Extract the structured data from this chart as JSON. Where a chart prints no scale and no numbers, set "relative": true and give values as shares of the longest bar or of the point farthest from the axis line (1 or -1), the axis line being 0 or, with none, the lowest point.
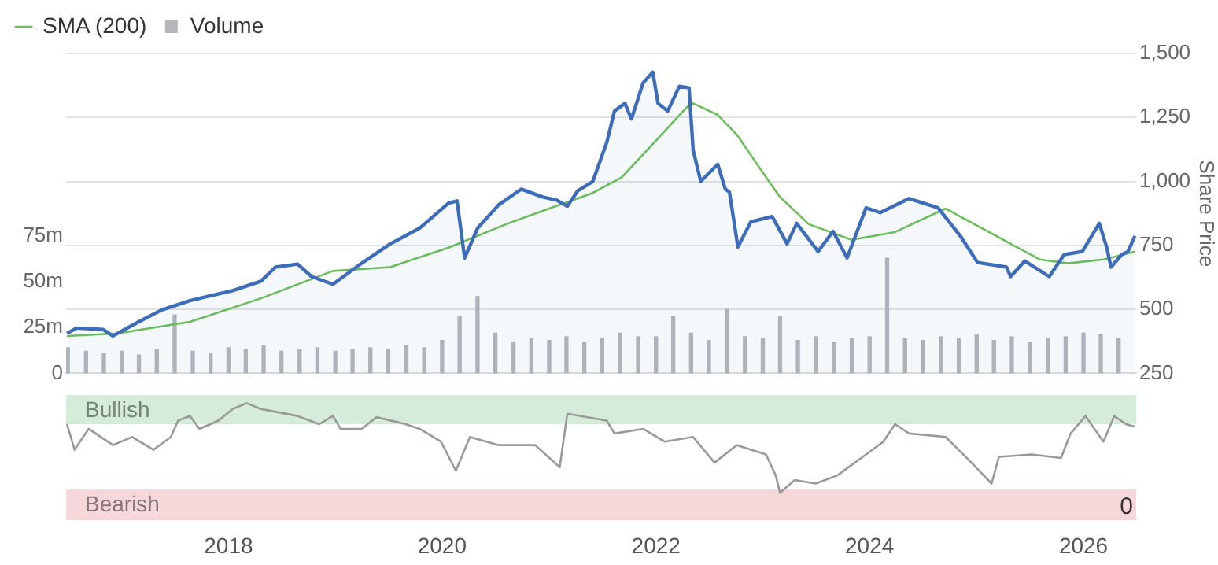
{
  "chart_data": [
    {
      "type": "line",
      "xlim": [
        "2016-06-25",
        "2026-06-30"
      ],
      "ylim": [
        250,
        1500
      ],
      "yticks": [
        {
          "value": 250,
          "label": "250"
        },
        {
          "value": 500,
          "label": "500"
        },
        {
          "value": 750,
          "label": "750"
        },
        {
          "value": 1000,
          "label": "1,000"
        },
        {
          "value": 1250,
          "label": "1,250"
        },
        {
          "value": 1500,
          "label": "1,500"
        }
      ],
      "y2lim": [
        0,
        175
      ],
      "y2ticks": [
        {
          "value": 0,
          "label": "0"
        },
        {
          "value": 25,
          "label": "25m"
        },
        {
          "value": 50,
          "label": "50m"
        },
        {
          "value": 75,
          "label": "75m"
        }
      ],
      "ylabel": "Share Price",
      "grid": "y",
      "legend": "top left",
      "tick_labels": "y",
      "series": [
        {
          "type": "bar",
          "name": "Volume",
          "axis": "y2",
          "color": "#b4b6bc",
          "x": [
            "2016-07-01",
            "2016-09-01",
            "2016-11-01",
            "2017-01-01",
            "2017-03-01",
            "2017-05-01",
            "2017-07-01",
            "2017-09-01",
            "2017-11-01",
            "2018-01-01",
            "2018-03-01",
            "2018-05-01",
            "2018-07-01",
            "2018-09-01",
            "2018-11-01",
            "2019-01-01",
            "2019-03-01",
            "2019-05-01",
            "2019-07-01",
            "2019-09-01",
            "2019-11-01",
            "2020-01-01",
            "2020-03-01",
            "2020-05-01",
            "2020-07-01",
            "2020-09-01",
            "2020-11-01",
            "2021-01-01",
            "2021-03-01",
            "2021-05-01",
            "2021-07-01",
            "2021-09-01",
            "2021-11-01",
            "2022-01-01",
            "2022-03-01",
            "2022-05-01",
            "2022-07-01",
            "2022-09-01",
            "2022-11-01",
            "2023-01-01",
            "2023-03-01",
            "2023-05-01",
            "2023-07-01",
            "2023-09-01",
            "2023-11-01",
            "2024-01-01",
            "2024-03-01",
            "2024-05-01",
            "2024-07-01",
            "2024-09-01",
            "2024-11-01",
            "2025-01-01",
            "2025-03-01",
            "2025-05-01",
            "2025-07-01",
            "2025-09-01",
            "2025-11-01",
            "2026-01-01",
            "2026-03-01",
            "2026-05-01"
          ],
          "values": [
            14,
            12,
            11,
            12,
            10,
            13,
            32,
            12,
            11,
            14,
            13,
            15,
            12,
            13,
            14,
            12,
            13,
            14,
            13,
            15,
            14,
            18,
            31,
            42,
            22,
            17,
            19,
            18,
            20,
            17,
            19,
            22,
            20,
            20,
            31,
            22,
            18,
            35,
            20,
            19,
            31,
            18,
            20,
            17,
            19,
            20,
            63,
            19,
            18,
            20,
            19,
            21,
            18,
            20,
            17,
            19,
            20,
            22,
            21,
            19
          ]
        },
        {
          "type": "area",
          "color": "#3d6cb9",
          "x": [
            "2016-06-28",
            "2016-07-31",
            "2016-10-30",
            "2016-12-02",
            "2017-02-28",
            "2017-05-16",
            "2017-08-22",
            "2018-01-15",
            "2018-04-22",
            "2018-06-10",
            "2018-08-25",
            "2018-10-12",
            "2018-12-24",
            "2019-04-01",
            "2019-07-08",
            "2019-10-16",
            "2020-01-23",
            "2020-02-21",
            "2020-03-18",
            "2020-05-01",
            "2020-07-13",
            "2020-09-28",
            "2020-12-10",
            "2021-01-27",
            "2021-03-04",
            "2021-04-09",
            "2021-05-30",
            "2021-07-17",
            "2021-08-12",
            "2021-09-17",
            "2021-10-09",
            "2021-11-18",
            "2021-12-21",
            "2022-01-08",
            "2022-02-10",
            "2022-03-22",
            "2022-04-24",
            "2022-05-08",
            "2022-06-03",
            "2022-07-31",
            "2022-08-26",
            "2022-09-09",
            "2022-10-08",
            "2022-11-21",
            "2023-02-02",
            "2023-03-25",
            "2023-04-27",
            "2023-07-09",
            "2023-08-29",
            "2023-10-16",
            "2023-12-20",
            "2024-02-06",
            "2024-05-15",
            "2024-08-22",
            "2024-11-06",
            "2025-01-04",
            "2025-04-13",
            "2025-04-27",
            "2025-06-14",
            "2025-09-06",
            "2025-10-27",
            "2025-12-28",
            "2026-02-24",
            "2026-03-21",
            "2026-04-05",
            "2026-05-12",
            "2026-06-02",
            "2026-06-26"
          ],
          "values": [
            406,
            427,
            421,
            396,
            451,
            497,
            534,
            573,
            610,
            665,
            677,
            628,
            598,
            680,
            756,
            817,
            915,
            924,
            701,
            817,
            909,
            970,
            939,
            927,
            903,
            964,
            1000,
            1153,
            1275,
            1305,
            1244,
            1385,
            1427,
            1305,
            1275,
            1372,
            1366,
            1122,
            1000,
            1067,
            970,
            958,
            744,
            842,
            863,
            756,
            836,
            726,
            805,
            701,
            897,
            878,
            933,
            897,
            787,
            683,
            665,
            628,
            689,
            628,
            714,
            726,
            836,
            744,
            665,
            714,
            726,
            787
          ]
        },
        {
          "type": "line",
          "name": "SMA (200)",
          "color": "#6cbf5a",
          "x": [
            "2016-06-28",
            "2016-12-17",
            "2017-08-22",
            "2018-04-22",
            "2018-12-24",
            "2019-07-08",
            "2020-01-23",
            "2020-08-07",
            "2021-01-01",
            "2021-05-30",
            "2021-09-06",
            "2022-01-08",
            "2022-04-16",
            "2022-05-08",
            "2022-07-31",
            "2022-10-04",
            "2023-01-12",
            "2023-03-01",
            "2023-06-07",
            "2023-10-31",
            "2024-03-28",
            "2024-09-17",
            "2025-01-19",
            "2025-08-04",
            "2025-11-10",
            "2026-03-10",
            "2026-06-26"
          ],
          "values": [
            396,
            406,
            451,
            543,
            650,
            665,
            741,
            833,
            894,
            955,
            1016,
            1168,
            1290,
            1305,
            1260,
            1183,
            1016,
            939,
            833,
            772,
            802,
            894,
            817,
            695,
            680,
            695,
            726
          ]
        }
      ]
    },
    {
      "type": "line",
      "relative": true,
      "xlim": [
        "2016-06-25",
        "2026-06-30"
      ],
      "xticks": [
        "2018",
        "2020",
        "2022",
        "2024",
        "2026"
      ],
      "tick_labels": "x",
      "bands": [
        {
          "axis": "y",
          "from": 0.82,
          "to": 1.07,
          "label": "Bullish",
          "color": "#d4ecd9"
        },
        {
          "axis": "y",
          "from": 0,
          "to": 0.26,
          "label": "Bearish",
          "color": "#f6d8db"
        }
      ],
      "annotations": [
        {
          "text": "0",
          "y": 0
        }
      ],
      "series": [
        {
          "color": "#999999",
          "x": [
            "2016-06-28",
            "2016-07-24",
            "2016-09-10",
            "2016-12-02",
            "2017-02-06",
            "2017-04-20",
            "2017-06-18",
            "2017-07-13",
            "2017-08-22",
            "2017-09-24",
            "2017-11-28",
            "2018-01-15",
            "2018-03-04",
            "2018-04-22",
            "2018-08-25",
            "2018-11-06",
            "2018-12-24",
            "2019-01-19",
            "2019-04-01",
            "2019-05-22",
            "2019-08-29",
            "2019-10-16",
            "2019-12-28",
            "2020-02-17",
            "2020-04-05",
            "2020-07-13",
            "2020-11-14",
            "2021-02-06",
            "2021-03-04",
            "2021-07-17",
            "2021-08-12",
            "2021-11-18",
            "2022-01-30",
            "2022-05-08",
            "2022-07-20",
            "2022-10-04",
            "2023-01-12",
            "2023-02-14",
            "2023-03-01",
            "2023-04-20",
            "2023-07-01",
            "2023-09-13",
            "2023-12-20",
            "2024-02-17",
            "2024-03-28",
            "2024-05-15",
            "2024-09-17",
            "2024-11-28",
            "2025-02-21",
            "2025-03-18",
            "2025-07-08",
            "2025-10-16",
            "2025-11-18",
            "2026-01-08",
            "2026-03-10",
            "2026-04-16",
            "2026-05-26",
            "2026-06-24"
          ],
          "values": [
            0.82,
            0.6,
            0.78,
            0.64,
            0.71,
            0.6,
            0.71,
            0.85,
            0.89,
            0.78,
            0.85,
            0.95,
            1,
            0.95,
            0.89,
            0.82,
            0.89,
            0.78,
            0.78,
            0.88,
            0.82,
            0.78,
            0.67,
            0.42,
            0.71,
            0.64,
            0.64,
            0.45,
            0.91,
            0.85,
            0.74,
            0.78,
            0.67,
            0.71,
            0.49,
            0.64,
            0.56,
            0.38,
            0.23,
            0.34,
            0.31,
            0.38,
            0.56,
            0.67,
            0.82,
            0.74,
            0.71,
            0.53,
            0.31,
            0.54,
            0.56,
            0.53,
            0.74,
            0.89,
            0.67,
            0.89,
            0.82,
            0.8
          ]
        }
      ]
    }
  ]
}
